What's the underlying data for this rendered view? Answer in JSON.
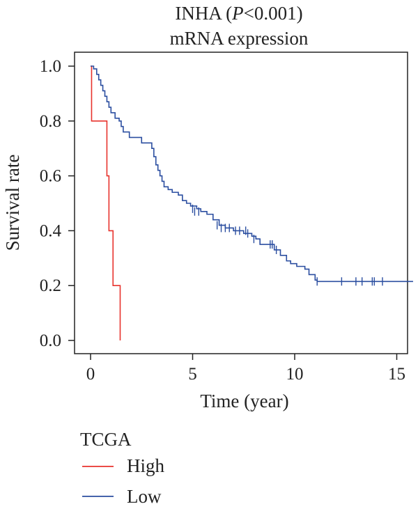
{
  "chart_data": {
    "type": "line",
    "title_prefix": "INHA (",
    "title_italic": "P",
    "title_suffix": "<0.001)",
    "subtitle": "mRNA expression",
    "xlabel": "Time (year)",
    "ylabel": "Survival rate",
    "xlim": [
      0,
      16
    ],
    "ylim": [
      0,
      1
    ],
    "xticks": [
      0,
      5,
      10,
      15
    ],
    "xtick_labels": [
      "0",
      "5",
      "10",
      "15"
    ],
    "yticks": [
      0.0,
      0.2,
      0.4,
      0.6,
      0.8,
      1.0
    ],
    "ytick_labels": [
      "0.0",
      "0.2",
      "0.4",
      "0.6",
      "0.8",
      "1.0"
    ],
    "grid": false,
    "legend": {
      "position": "bottom-left",
      "title": "TCGA",
      "entries": [
        "High",
        "Low"
      ]
    },
    "series": [
      {
        "name": "High",
        "color": "#e8332d",
        "step_points": [
          [
            0,
            1.0
          ],
          [
            0.05,
            0.8
          ],
          [
            0.8,
            0.6
          ],
          [
            0.9,
            0.4
          ],
          [
            1.1,
            0.2
          ],
          [
            1.45,
            0.0
          ]
        ],
        "censored": []
      },
      {
        "name": "Low",
        "color": "#2b4ea0",
        "step_points": [
          [
            0,
            1.0
          ],
          [
            0.15,
            0.99
          ],
          [
            0.3,
            0.97
          ],
          [
            0.4,
            0.95
          ],
          [
            0.5,
            0.93
          ],
          [
            0.6,
            0.91
          ],
          [
            0.7,
            0.89
          ],
          [
            0.8,
            0.87
          ],
          [
            0.9,
            0.85
          ],
          [
            1.0,
            0.83
          ],
          [
            1.2,
            0.81
          ],
          [
            1.4,
            0.8
          ],
          [
            1.5,
            0.78
          ],
          [
            1.6,
            0.76
          ],
          [
            1.9,
            0.74
          ],
          [
            2.2,
            0.74
          ],
          [
            2.5,
            0.72
          ],
          [
            2.8,
            0.72
          ],
          [
            3.0,
            0.7
          ],
          [
            3.1,
            0.67
          ],
          [
            3.2,
            0.64
          ],
          [
            3.3,
            0.62
          ],
          [
            3.4,
            0.6
          ],
          [
            3.5,
            0.58
          ],
          [
            3.6,
            0.56
          ],
          [
            3.8,
            0.55
          ],
          [
            4.0,
            0.54
          ],
          [
            4.3,
            0.53
          ],
          [
            4.5,
            0.51
          ],
          [
            4.7,
            0.5
          ],
          [
            4.9,
            0.49
          ],
          [
            5.2,
            0.48
          ],
          [
            5.4,
            0.47
          ],
          [
            5.7,
            0.46
          ],
          [
            6.0,
            0.44
          ],
          [
            6.3,
            0.42
          ],
          [
            6.6,
            0.41
          ],
          [
            7.0,
            0.4
          ],
          [
            7.5,
            0.39
          ],
          [
            7.9,
            0.38
          ],
          [
            8.1,
            0.37
          ],
          [
            8.3,
            0.35
          ],
          [
            9.0,
            0.33
          ],
          [
            9.3,
            0.31
          ],
          [
            9.6,
            0.29
          ],
          [
            9.8,
            0.28
          ],
          [
            10.1,
            0.27
          ],
          [
            10.5,
            0.26
          ],
          [
            10.7,
            0.24
          ],
          [
            11.0,
            0.22
          ],
          [
            11.1,
            0.215
          ],
          [
            15.8,
            0.215
          ]
        ],
        "censored": [
          [
            5.0,
            0.48
          ],
          [
            5.1,
            0.47
          ],
          [
            5.3,
            0.47
          ],
          [
            6.2,
            0.42
          ],
          [
            6.4,
            0.41
          ],
          [
            6.6,
            0.41
          ],
          [
            6.8,
            0.41
          ],
          [
            7.1,
            0.4
          ],
          [
            7.3,
            0.4
          ],
          [
            7.6,
            0.4
          ],
          [
            7.7,
            0.39
          ],
          [
            8.0,
            0.37
          ],
          [
            8.8,
            0.35
          ],
          [
            8.9,
            0.35
          ],
          [
            9.1,
            0.33
          ],
          [
            11.1,
            0.215
          ],
          [
            12.3,
            0.215
          ],
          [
            13.0,
            0.215
          ],
          [
            13.3,
            0.215
          ],
          [
            13.8,
            0.215
          ],
          [
            13.9,
            0.215
          ],
          [
            14.3,
            0.215
          ]
        ]
      }
    ]
  }
}
